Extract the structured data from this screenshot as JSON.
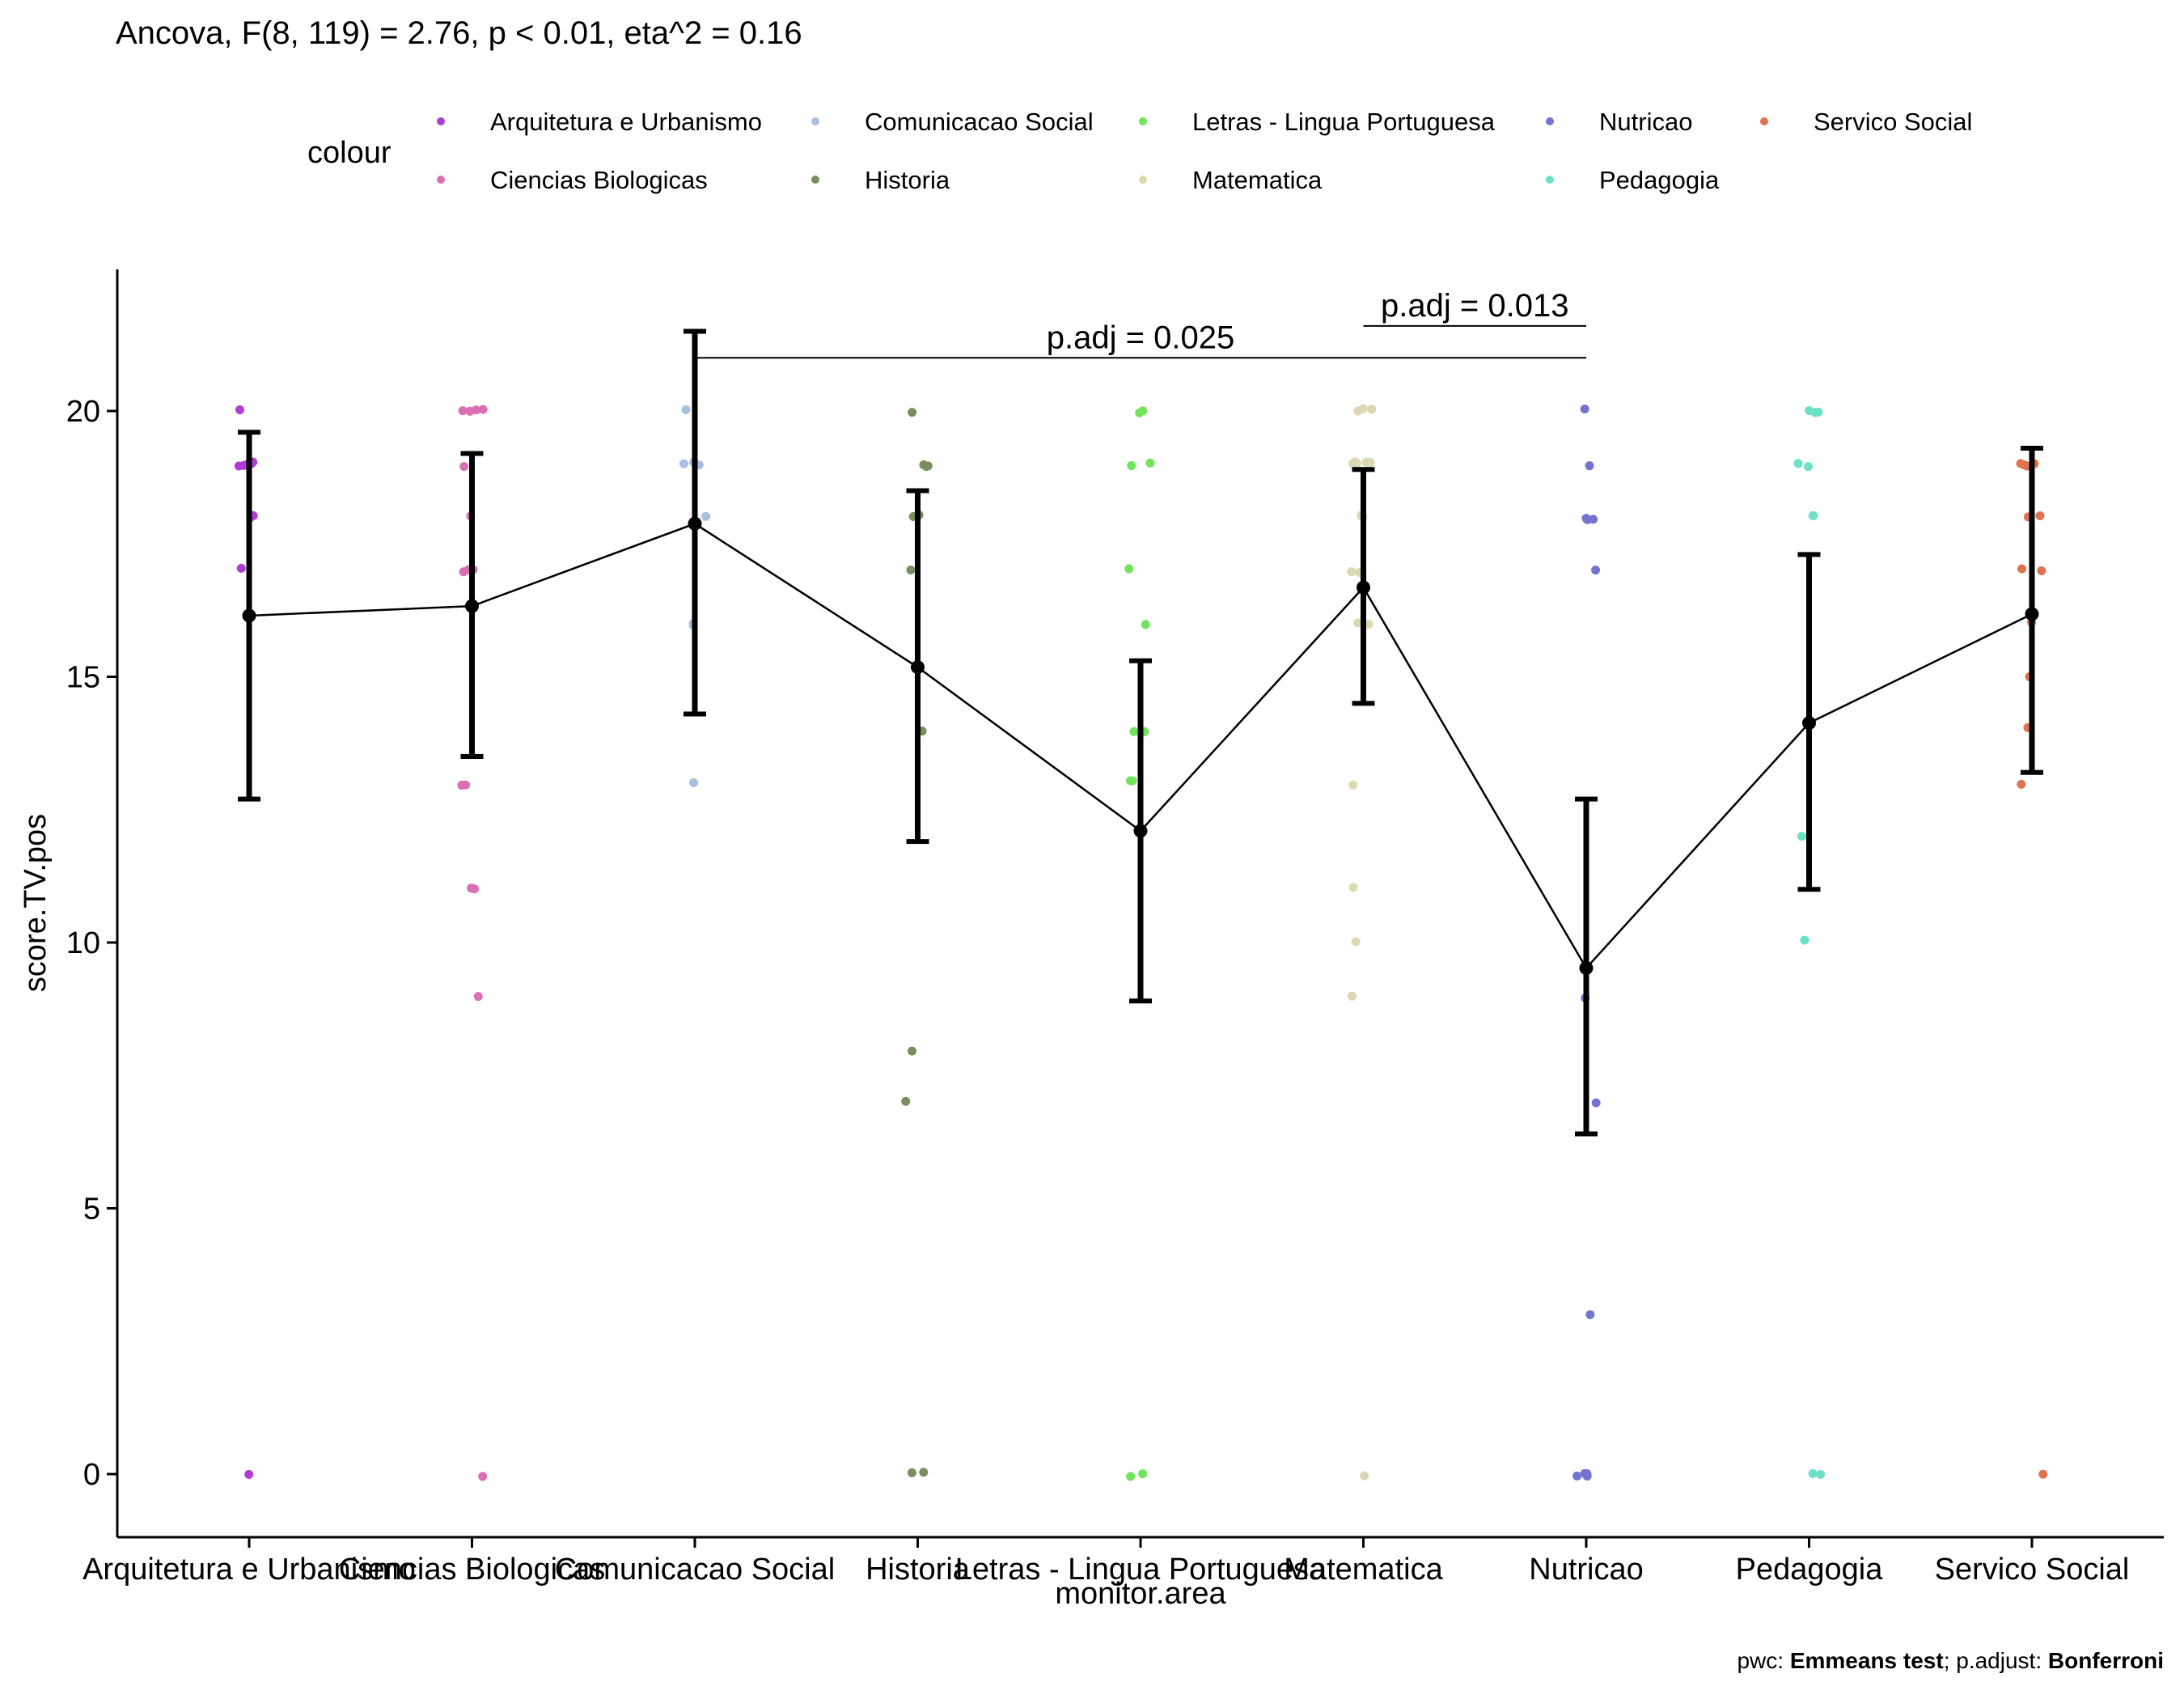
{
  "chart_data": {
    "type": "scatter",
    "title": "Ancova, F(8, 119) = 2.76, p < 0.01, eta^2 = 0.16",
    "xlabel": "monitor.area",
    "ylabel": "score.TV.pos",
    "ylim": [
      -1.1,
      22.6
    ],
    "yticks": [
      0,
      5,
      10,
      15,
      20
    ],
    "grid": false,
    "legend": {
      "title": "colour",
      "position": "top"
    },
    "categories": [
      "Arquitetura e Urbanismo",
      "Ciencias Biologicas",
      "Comunicacao Social",
      "Historia",
      "Letras - Lingua Portuguesa",
      "Matematica",
      "Nutricao",
      "Pedagogia",
      "Servico Social"
    ],
    "colors": [
      "#B03CD6",
      "#DB6FB5",
      "#A8BFE0",
      "#788E5C",
      "#71E45A",
      "#DCD8B1",
      "#7275D0",
      "#6BE2C6",
      "#E0724F"
    ],
    "points": [
      [
        0,
        20,
        19,
        19,
        19,
        19,
        19,
        19,
        18,
        18,
        17
      ],
      [
        0,
        20,
        20,
        20,
        20,
        19,
        18,
        17,
        17,
        17,
        13,
        13,
        11,
        11,
        9
      ],
      [
        20,
        19,
        19,
        19,
        18,
        16,
        16,
        13
      ],
      [
        0,
        0,
        20,
        19,
        19,
        19,
        18,
        18,
        17,
        14,
        8,
        7
      ],
      [
        0,
        0,
        20,
        20,
        19,
        19,
        17,
        16,
        14,
        14,
        13,
        13
      ],
      [
        0,
        20,
        20,
        20,
        19,
        19,
        19,
        19,
        19,
        18,
        18,
        17,
        17,
        17,
        16,
        16,
        13,
        11,
        10,
        9
      ],
      [
        0,
        0,
        0,
        0,
        3,
        7,
        9,
        17,
        18,
        18,
        18,
        19,
        20
      ],
      [
        0,
        0,
        20,
        20,
        20,
        19,
        19,
        18,
        18,
        12,
        10
      ],
      [
        0,
        19,
        19,
        19,
        19,
        19,
        18,
        18,
        17,
        17,
        16,
        15,
        14,
        13
      ]
    ],
    "mean": [
      16.15,
      16.33,
      17.88,
      15.18,
      12.1,
      16.68,
      9.52,
      14.13,
      16.18
    ],
    "ci_lower": [
      12.7,
      13.5,
      14.3,
      11.9,
      8.9,
      14.5,
      6.4,
      11.0,
      13.2
    ],
    "ci_upper": [
      19.6,
      19.2,
      21.5,
      18.5,
      15.3,
      18.9,
      12.7,
      17.3,
      19.3
    ],
    "annotations": [
      {
        "label": "p.adj = 0.025",
        "from": "Comunicacao Social",
        "to": "Nutricao",
        "y": 21.0
      },
      {
        "label": "p.adj = 0.013",
        "from": "Matematica",
        "to": "Nutricao",
        "y": 21.6
      }
    ],
    "caption": {
      "prefix1": "pwc: ",
      "bold1": "Emmeans test",
      "prefix2": "; p.adjust: ",
      "bold2": "Bonferroni"
    }
  }
}
